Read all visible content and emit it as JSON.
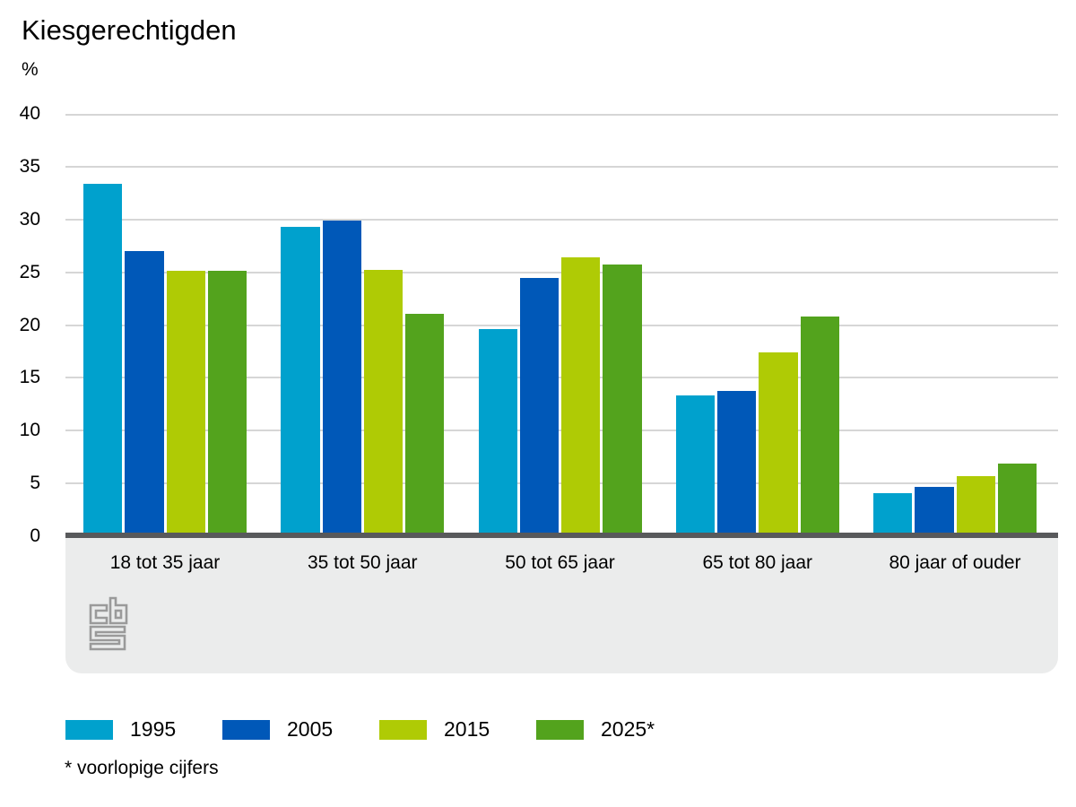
{
  "chart": {
    "title": "Kiesgerechtigden",
    "unit": "%",
    "footnote": "* voorlopige cijfers"
  },
  "chart_data": {
    "type": "bar",
    "title": "Kiesgerechtigden",
    "ylabel": "%",
    "ylim": [
      0,
      40
    ],
    "yticks": [
      0,
      5,
      10,
      15,
      20,
      25,
      30,
      35,
      40
    ],
    "grid": true,
    "legend_position": "bottom",
    "categories": [
      "18 tot 35 jaar",
      "35 tot 50 jaar",
      "50 tot 65 jaar",
      "65 tot 80 jaar",
      "80 jaar of ouder"
    ],
    "series": [
      {
        "name": "1995",
        "color": "#00a1cd",
        "values": [
          33.4,
          29.3,
          19.6,
          13.3,
          4.1
        ]
      },
      {
        "name": "2005",
        "color": "#0058b8",
        "values": [
          27.0,
          29.9,
          24.5,
          13.8,
          4.7
        ]
      },
      {
        "name": "2015",
        "color": "#afcb05",
        "values": [
          25.1,
          25.2,
          26.4,
          17.4,
          5.7
        ]
      },
      {
        "name": "2025*",
        "color": "#53a31d",
        "values": [
          25.1,
          21.1,
          25.7,
          20.8,
          6.9
        ]
      }
    ],
    "footnote": "* voorlopige cijfers"
  },
  "colors": {
    "gridline": "#d6d6d6",
    "baseline": "#58595b",
    "footer_band": "#ebecec",
    "logo": "#9a9a9a",
    "background": "#ffffff"
  }
}
